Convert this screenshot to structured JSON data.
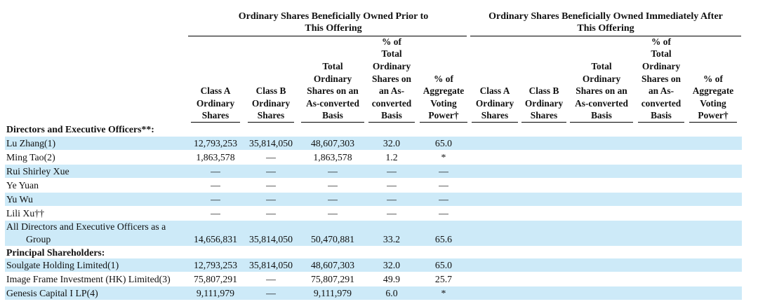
{
  "headers": {
    "group_prior": [
      "Ordinary Shares Beneficially Owned Prior to",
      "This Offering"
    ],
    "group_after": [
      "Ordinary Shares Beneficially Owned Immediately After",
      "This Offering"
    ],
    "columns": [
      [
        "Class A",
        "Ordinary",
        "Shares"
      ],
      [
        "Class B",
        "Ordinary",
        "Shares"
      ],
      [
        "Total",
        "Ordinary",
        "Shares on an",
        "As-converted",
        "Basis"
      ],
      [
        "% of",
        "Total",
        "Ordinary",
        "Shares on",
        "an As-",
        "converted",
        "Basis"
      ],
      [
        "% of",
        "Aggregate",
        "Voting",
        "Power†"
      ],
      [
        "Class A",
        "Ordinary",
        "Shares"
      ],
      [
        "Class B",
        "Ordinary",
        "Shares"
      ],
      [
        "Total",
        "Ordinary",
        "Shares on an",
        "As-converted",
        "Basis"
      ],
      [
        "% of",
        "Total",
        "Ordinary",
        "Shares on",
        "an As-",
        "converted",
        "Basis"
      ],
      [
        "% of",
        "Aggregate",
        "Voting",
        "Power†"
      ]
    ]
  },
  "rows": [
    {
      "type": "section",
      "label": "Directors and Executive Officers**:",
      "values": [
        "",
        "",
        "",
        "",
        ""
      ]
    },
    {
      "type": "data",
      "label": "Lu Zhang(1)",
      "values": [
        "12,793,253",
        "35,814,050",
        "48,607,303",
        "32.0",
        "65.0"
      ]
    },
    {
      "type": "data",
      "label": "Ming Tao(2)",
      "values": [
        "1,863,578",
        "—",
        "1,863,578",
        "1.2",
        "*"
      ]
    },
    {
      "type": "data",
      "label": "Rui Shirley Xue",
      "values": [
        "—",
        "—",
        "—",
        "—",
        "—"
      ]
    },
    {
      "type": "data",
      "label": "Ye Yuan",
      "values": [
        "—",
        "—",
        "—",
        "—",
        "—"
      ]
    },
    {
      "type": "data",
      "label": "Yu Wu",
      "values": [
        "—",
        "—",
        "—",
        "—",
        "—"
      ]
    },
    {
      "type": "data",
      "label": "Lili Xu††",
      "values": [
        "—",
        "—",
        "—",
        "—",
        "—"
      ]
    },
    {
      "type": "data",
      "label": "All Directors and Executive Officers as a",
      "label2": "Group",
      "values": [
        "14,656,831",
        "35,814,050",
        "50,470,881",
        "33.2",
        "65.6"
      ]
    },
    {
      "type": "section",
      "label": "Principal Shareholders:",
      "values": [
        "",
        "",
        "",
        "",
        ""
      ]
    },
    {
      "type": "data",
      "label": "Soulgate Holding Limited(1)",
      "values": [
        "12,793,253",
        "35,814,050",
        "48,607,303",
        "32.0",
        "65.0"
      ]
    },
    {
      "type": "data",
      "label": "Image Frame Investment (HK) Limited(3)",
      "values": [
        "75,807,291",
        "—",
        "75,807,291",
        "49.9",
        "25.7"
      ]
    },
    {
      "type": "data",
      "label": "Genesis Capital I LP(4)",
      "values": [
        "9,111,979",
        "—",
        "9,111,979",
        "6.0",
        "*"
      ]
    }
  ]
}
